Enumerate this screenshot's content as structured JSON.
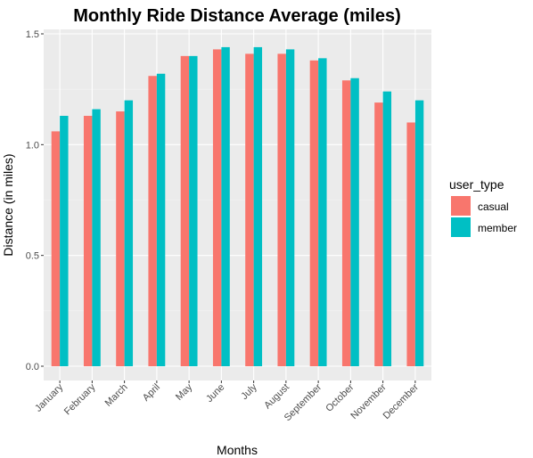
{
  "chart_data": {
    "type": "bar",
    "title": "Monthly Ride Distance Average (miles)",
    "xlabel": "Months",
    "ylabel": "Distance (in miles)",
    "ylim": [
      0,
      1.5
    ],
    "yticks": [
      0.0,
      0.5,
      1.0,
      1.5
    ],
    "ytick_labels": [
      "0.0",
      "0.5",
      "1.0",
      "1.5"
    ],
    "grid": true,
    "legend_placement": "right",
    "legend_title": "user_type",
    "categories": [
      "January",
      "February",
      "March",
      "April",
      "May",
      "June",
      "July",
      "August",
      "September",
      "October",
      "November",
      "December"
    ],
    "series": [
      {
        "name": "casual",
        "color": "#F8766D",
        "values": [
          1.06,
          1.13,
          1.15,
          1.31,
          1.4,
          1.43,
          1.41,
          1.41,
          1.38,
          1.29,
          1.19,
          1.1
        ]
      },
      {
        "name": "member",
        "color": "#00BFC4",
        "values": [
          1.13,
          1.16,
          1.2,
          1.32,
          1.4,
          1.44,
          1.44,
          1.43,
          1.39,
          1.3,
          1.24,
          1.2
        ]
      }
    ]
  }
}
